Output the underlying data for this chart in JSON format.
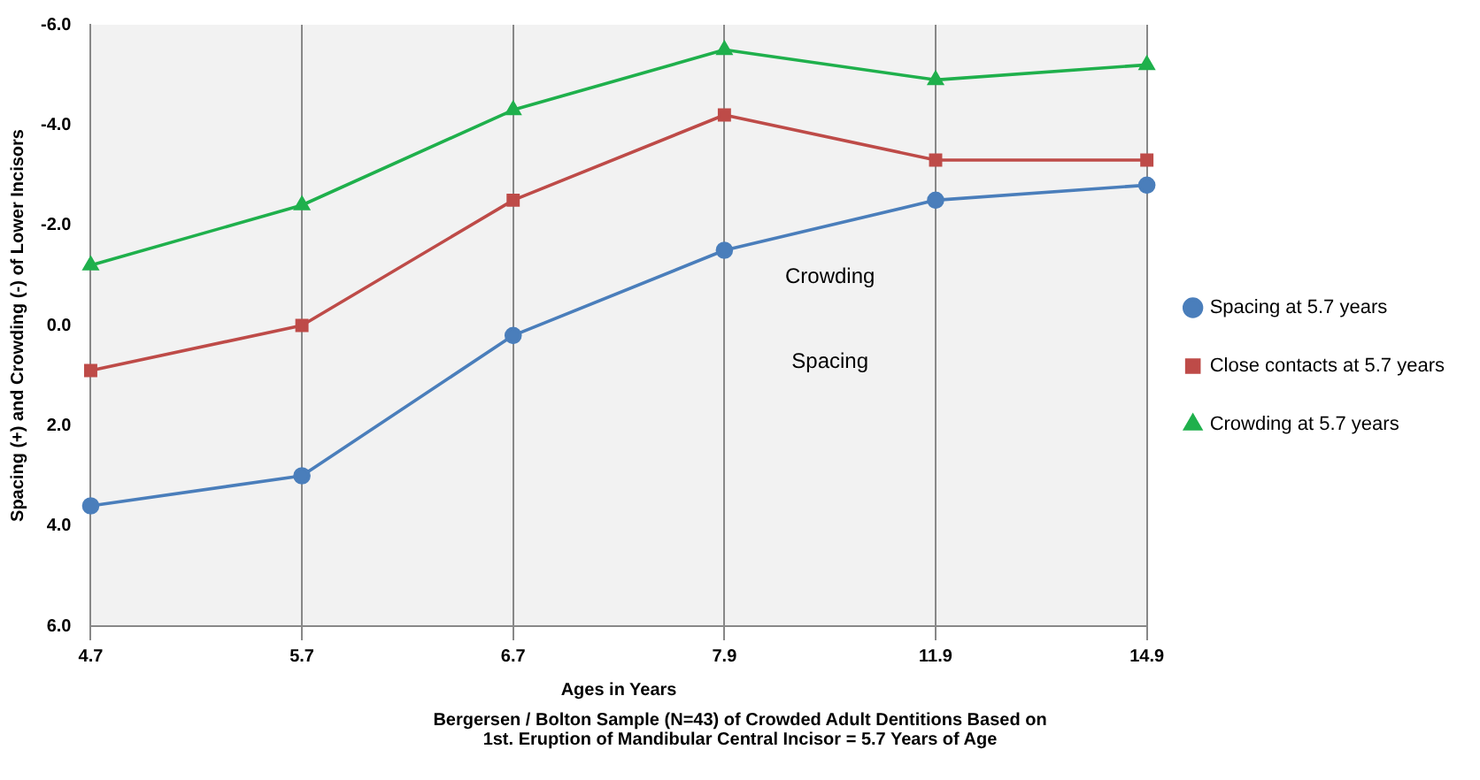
{
  "chart_data": {
    "type": "line",
    "xlabel": "Ages in Years",
    "ylabel": "Spacing (+) and Crowding (-) of Lower Incisors",
    "categories": [
      "4.7",
      "5.7",
      "6.7",
      "7.9",
      "11.9",
      "14.9"
    ],
    "series": [
      {
        "name": "Spacing at 5.7 years",
        "color": "#4a7ebb",
        "marker": "circle",
        "values": [
          3.6,
          3.0,
          0.2,
          -1.5,
          -2.5,
          -2.8
        ]
      },
      {
        "name": "Close contacts at 5.7 years",
        "color": "#be4b48",
        "marker": "square",
        "values": [
          0.9,
          0.0,
          -2.5,
          -4.2,
          -3.3,
          -3.3
        ]
      },
      {
        "name": "Crowding at 5.7 years",
        "color": "#1fb04c",
        "marker": "triangle",
        "values": [
          -1.2,
          -2.4,
          -4.3,
          -5.5,
          -4.9,
          -5.2
        ]
      }
    ],
    "ylim": [
      6,
      -6
    ],
    "yticks": [
      {
        "value": -6,
        "label": "-6.0"
      },
      {
        "value": -4,
        "label": "-4.0"
      },
      {
        "value": -2,
        "label": "-2.0"
      },
      {
        "value": 0,
        "label": "0.0"
      },
      {
        "value": 2,
        "label": "2.0"
      },
      {
        "value": 4,
        "label": "4.0"
      },
      {
        "value": 6,
        "label": "6.0"
      }
    ],
    "grid": "x",
    "legend": "right",
    "line_style": "solid",
    "annotations": [
      "Crowding",
      "Spacing",
      "Bergersen / Bolton Sample (N=43) of Crowded Adult Dentitions Based on\n1st. Eruption of Mandibular Central Incisor = 5.7 Years of Age"
    ]
  }
}
